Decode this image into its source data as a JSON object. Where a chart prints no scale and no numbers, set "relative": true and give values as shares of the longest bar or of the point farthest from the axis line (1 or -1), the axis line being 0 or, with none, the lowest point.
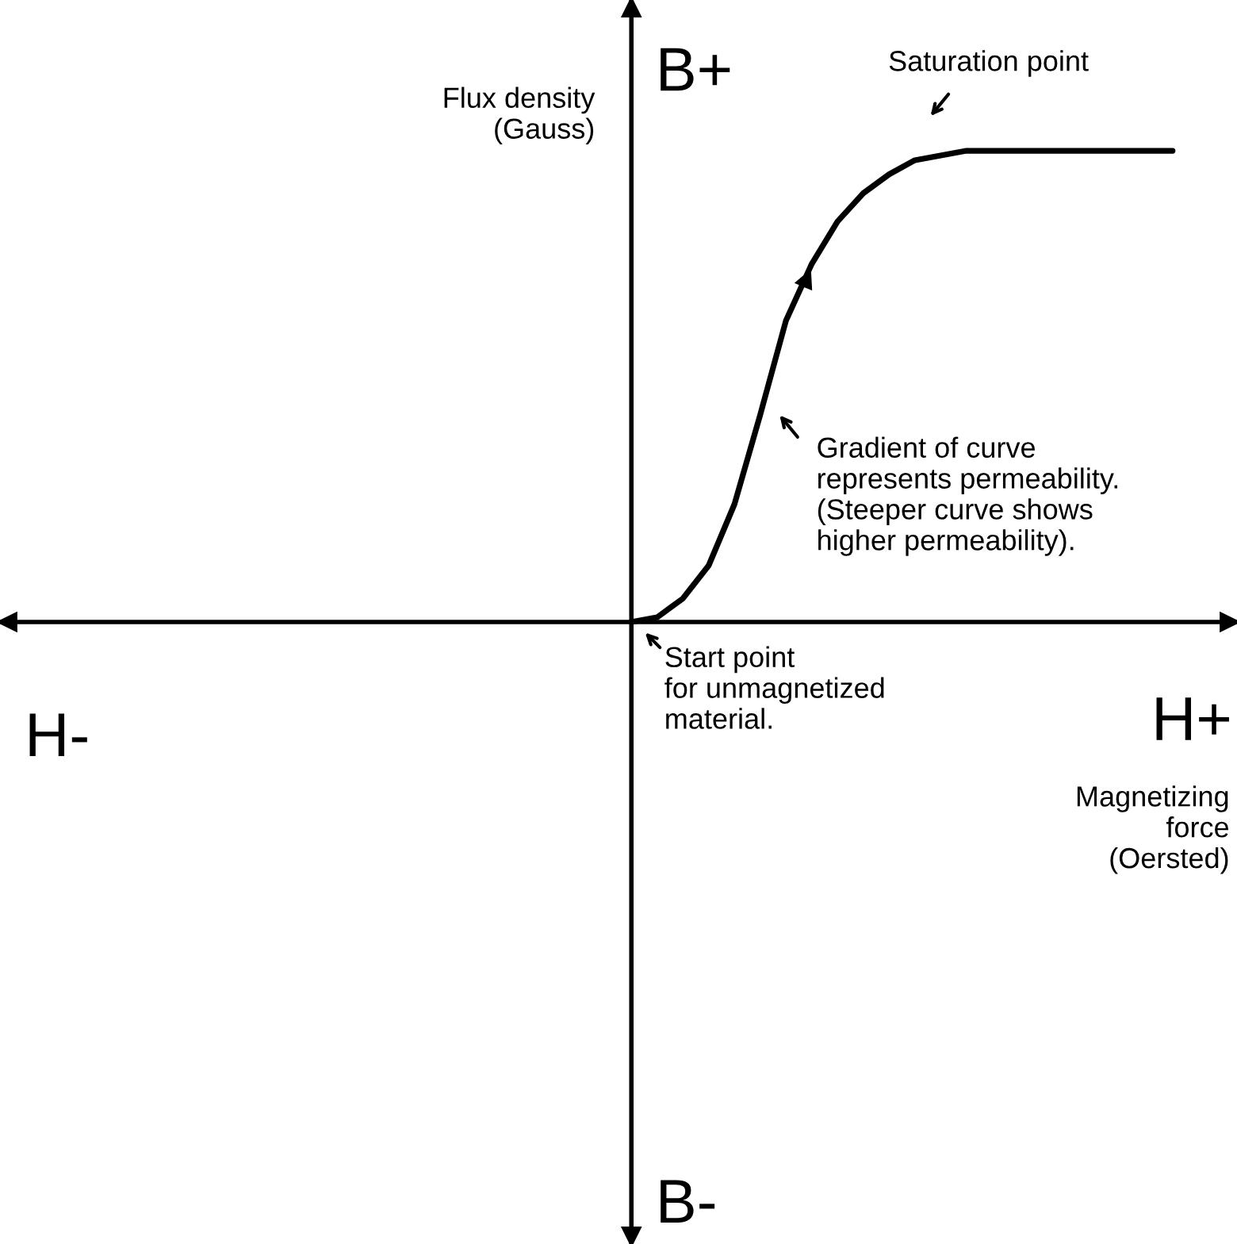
{
  "chart_data": {
    "type": "line",
    "relative": true,
    "ylabel": "Flux density\n(Gauss)",
    "categories": [
      null,
      null,
      null,
      null,
      null,
      null,
      null,
      null,
      null,
      null,
      null,
      null,
      null,
      null,
      null,
      null,
      null,
      null,
      null,
      null,
      null,
      null,
      null,
      null,
      null,
      null,
      null,
      null,
      null,
      null,
      null,
      null,
      null,
      null,
      null,
      null,
      null,
      null,
      null,
      null,
      null,
      null,
      null,
      null,
      null,
      null,
      null,
      null
    ],
    "series": [
      {
        "color": "#000000",
        "values": [
          null,
          null,
          null,
          null,
          null,
          null,
          null,
          null,
          null,
          null,
          null,
          null,
          null,
          null,
          null,
          null,
          null,
          null,
          null,
          null,
          null,
          null,
          null,
          null,
          0,
          0.01,
          0.05,
          0.12,
          0.25,
          0.44,
          0.64,
          0.76,
          0.85,
          0.91,
          0.95,
          0.98,
          0.99,
          1,
          1,
          1,
          1,
          1,
          1,
          1,
          1,
          1,
          null,
          null
        ]
      }
    ],
    "annotations": [
      "H-",
      "H+",
      "B+",
      "B-",
      "Saturation point",
      "Gradient of curve\nrepresents permeability.\n(Steeper curve shows\nhigher permeability).",
      "Start point\nfor unmagnetized\nmaterial.",
      "Magnetizing\nforce\n(Oersted)"
    ],
    "marker": "none",
    "line_style": "solid",
    "grid": false,
    "legend": false
  }
}
